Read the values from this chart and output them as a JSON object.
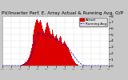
{
  "title": "Solar PV/Inverter Perf. E. Array Actual & Running Avg. O/P",
  "background_color": "#c8c8c8",
  "plot_bg_color": "#ffffff",
  "bar_color": "#dd0000",
  "line_color": "#0000dd",
  "grid_color": "#999999",
  "ylim": [
    0,
    8
  ],
  "yticks": [
    0,
    1,
    2,
    3,
    4,
    5,
    6,
    7,
    8
  ],
  "ytick_labels": [
    "0",
    "1",
    "2",
    "3",
    "4",
    "5",
    "6",
    "7",
    "8"
  ],
  "n_bars": 144,
  "bar_heights": [
    0.0,
    0.0,
    0.0,
    0.0,
    0.0,
    0.0,
    0.0,
    0.0,
    0.0,
    0.0,
    0.0,
    0.0,
    0.0,
    0.0,
    0.0,
    0.0,
    0.0,
    0.0,
    0.0,
    0.0,
    0.0,
    0.0,
    0.0,
    0.0,
    0.05,
    0.1,
    0.15,
    0.2,
    0.25,
    0.3,
    0.4,
    0.5,
    0.6,
    0.7,
    0.9,
    1.1,
    1.4,
    1.8,
    2.3,
    2.8,
    3.5,
    4.2,
    5.0,
    5.8,
    6.5,
    7.0,
    7.3,
    7.5,
    7.2,
    6.8,
    7.1,
    7.4,
    7.0,
    6.5,
    6.2,
    5.9,
    5.6,
    5.3,
    5.8,
    6.2,
    6.8,
    7.0,
    6.5,
    6.0,
    5.5,
    5.2,
    5.0,
    5.5,
    5.8,
    5.2,
    4.8,
    4.5,
    4.8,
    5.0,
    4.5,
    4.2,
    4.0,
    4.5,
    4.8,
    4.5,
    4.2,
    3.8,
    3.5,
    3.8,
    4.0,
    3.8,
    3.5,
    3.2,
    3.0,
    2.8,
    2.5,
    2.2,
    2.0,
    1.8,
    1.5,
    1.2,
    1.0,
    0.8,
    0.6,
    0.4,
    0.3,
    0.2,
    0.1,
    0.05,
    0.0,
    0.0,
    0.0,
    0.0,
    0.0,
    0.0,
    0.0,
    0.0,
    0.0,
    0.0,
    0.0,
    0.0,
    0.0,
    0.0,
    0.0,
    0.0,
    0.0,
    0.0,
    0.0,
    0.0,
    0.0,
    0.0,
    0.0,
    0.0,
    0.0,
    0.0,
    0.0,
    0.0,
    0.0,
    0.0,
    0.0,
    0.0,
    0.0,
    0.0,
    0.0,
    0.0,
    0.0,
    0.0,
    0.0,
    0.0
  ],
  "running_avg": [
    0.0,
    0.0,
    0.0,
    0.0,
    0.0,
    0.0,
    0.0,
    0.0,
    0.0,
    0.0,
    0.0,
    0.0,
    0.0,
    0.0,
    0.0,
    0.0,
    0.0,
    0.0,
    0.0,
    0.0,
    0.0,
    0.0,
    0.0,
    0.0,
    0.02,
    0.04,
    0.06,
    0.09,
    0.12,
    0.15,
    0.2,
    0.26,
    0.33,
    0.42,
    0.55,
    0.7,
    0.88,
    1.1,
    1.38,
    1.68,
    2.05,
    2.45,
    2.9,
    3.38,
    3.88,
    4.32,
    4.72,
    5.05,
    5.18,
    5.18,
    5.22,
    5.28,
    5.25,
    5.15,
    5.05,
    4.95,
    4.85,
    4.75,
    4.78,
    4.85,
    4.95,
    5.02,
    4.95,
    4.85,
    4.72,
    4.6,
    4.5,
    4.52,
    4.58,
    4.48,
    4.35,
    4.22,
    4.22,
    4.28,
    4.18,
    4.05,
    3.92,
    3.92,
    3.98,
    3.88,
    3.75,
    3.58,
    3.45,
    3.45,
    3.5,
    3.4,
    3.28,
    3.15,
    3.02,
    2.88,
    2.72,
    2.55,
    2.38,
    2.22,
    2.05,
    1.88,
    1.7,
    1.52,
    1.35,
    1.18,
    1.02,
    0.88,
    0.75,
    0.62,
    0.5,
    0.4,
    0.3,
    0.22,
    0.15,
    0.1,
    0.06,
    0.04,
    0.02,
    0.01,
    0.0,
    0.0,
    0.0,
    0.0,
    0.0,
    0.0,
    0.0,
    0.0,
    0.0,
    0.0,
    0.0,
    0.0,
    0.0,
    0.0,
    0.0,
    0.0,
    0.0,
    0.0,
    0.0,
    0.0,
    0.0,
    0.0,
    0.0,
    0.0,
    0.0,
    0.0,
    0.0,
    0.0,
    0.0,
    0.0
  ],
  "title_fontsize": 4.2,
  "tick_fontsize": 3.2,
  "legend_fontsize": 3.0,
  "xlabel_ticks": 13
}
